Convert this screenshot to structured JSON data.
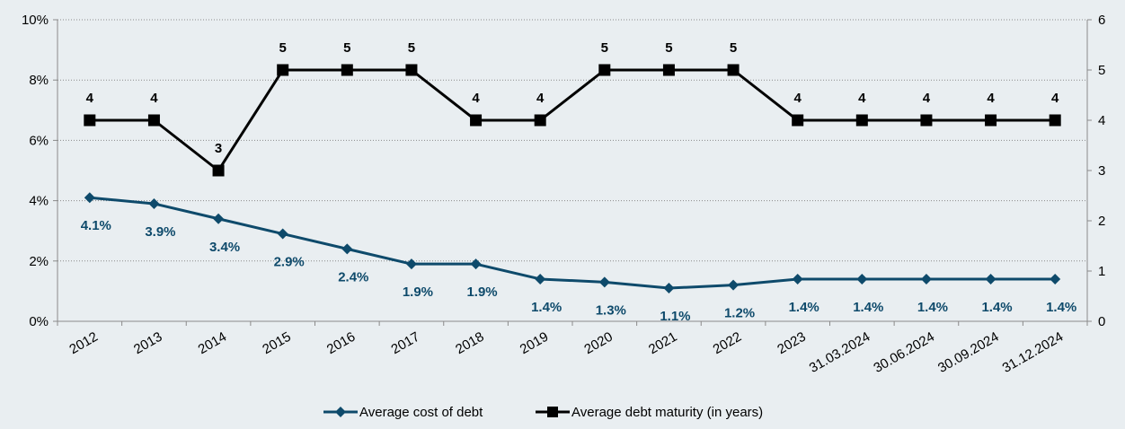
{
  "chart_data": {
    "type": "line",
    "categories": [
      "2012",
      "2013",
      "2014",
      "2015",
      "2016",
      "2017",
      "2018",
      "2019",
      "2020",
      "2021",
      "2022",
      "2023",
      "31.03.2024",
      "30.06.2024",
      "30.09.2024",
      "31.12.2024"
    ],
    "series": [
      {
        "name": "Average cost of debt",
        "axis": "left",
        "color": "#0e4a6b",
        "marker": "diamond",
        "values": [
          4.1,
          3.9,
          3.4,
          2.9,
          2.4,
          1.9,
          1.9,
          1.4,
          1.3,
          1.1,
          1.2,
          1.4,
          1.4,
          1.4,
          1.4,
          1.4
        ],
        "labels": [
          "4.1%",
          "3.9%",
          "3.4%",
          "2.9%",
          "2.4%",
          "1.9%",
          "1.9%",
          "1.4%",
          "1.3%",
          "1.1%",
          "1.2%",
          "1.4%",
          "1.4%",
          "1.4%",
          "1.4%",
          "1.4%"
        ]
      },
      {
        "name": "Average debt maturity (in years)",
        "axis": "right",
        "color": "#000000",
        "marker": "square",
        "values": [
          4,
          4,
          3,
          5,
          5,
          5,
          4,
          4,
          5,
          5,
          5,
          4,
          4,
          4,
          4,
          4
        ],
        "labels": [
          "4",
          "4",
          "3",
          "5",
          "5",
          "5",
          "4",
          "4",
          "5",
          "5",
          "5",
          "4",
          "4",
          "4",
          "4",
          "4"
        ]
      }
    ],
    "y_left": {
      "min": 0,
      "max": 10,
      "ticks": [
        "0%",
        "2%",
        "4%",
        "6%",
        "8%",
        "10%"
      ]
    },
    "y_right": {
      "min": 0,
      "max": 6,
      "ticks": [
        "0",
        "1",
        "2",
        "3",
        "4",
        "5",
        "6"
      ]
    },
    "grid": true,
    "legend": "bottom"
  }
}
